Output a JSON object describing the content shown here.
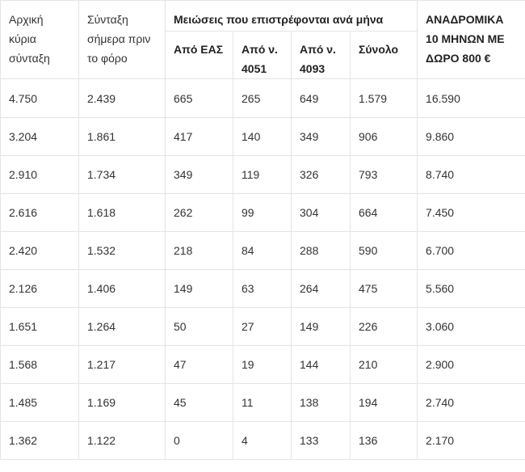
{
  "table": {
    "headers": {
      "original_pension": "Αρχική κύρια σύνταξη",
      "pension_before_tax": "Σύνταξη σήμερα πριν το φόρο",
      "reductions_group": "Μειώσεις που επιστρέφονται ανά μήνα",
      "from_eas": "Από ΕΑΣ",
      "from_4051": "Από ν. 4051",
      "from_4093": "Από ν. 4093",
      "total": "Σύνολο",
      "retroactive": "ΑΝΑΔΡΟΜΙΚΑ 10 ΜΗΝΩΝ ΜΕ ΔΩΡΟ 800 €"
    },
    "rows": [
      [
        "4.750",
        "2.439",
        "665",
        "265",
        "649",
        "1.579",
        "16.590"
      ],
      [
        "3.204",
        "1.861",
        "417",
        "140",
        "349",
        "906",
        "9.860"
      ],
      [
        "2.910",
        "1.734",
        "349",
        "119",
        "326",
        "793",
        "8.740"
      ],
      [
        "2.616",
        "1.618",
        "262",
        "99",
        "304",
        "664",
        "7.450"
      ],
      [
        "2.420",
        "1.532",
        "218",
        "84",
        "288",
        "590",
        "6.700"
      ],
      [
        "2.126",
        "1.406",
        "149",
        "63",
        "264",
        "475",
        "5.560"
      ],
      [
        "1.651",
        "1.264",
        "50",
        "27",
        "149",
        "226",
        "3.060"
      ],
      [
        "1.568",
        "1.217",
        "47",
        "19",
        "144",
        "210",
        "2.900"
      ],
      [
        "1.485",
        "1.169",
        "45",
        "11",
        "138",
        "194",
        "2.740"
      ],
      [
        "1.362",
        "1.122",
        "0",
        "4",
        "133",
        "136",
        "2.170"
      ]
    ]
  }
}
